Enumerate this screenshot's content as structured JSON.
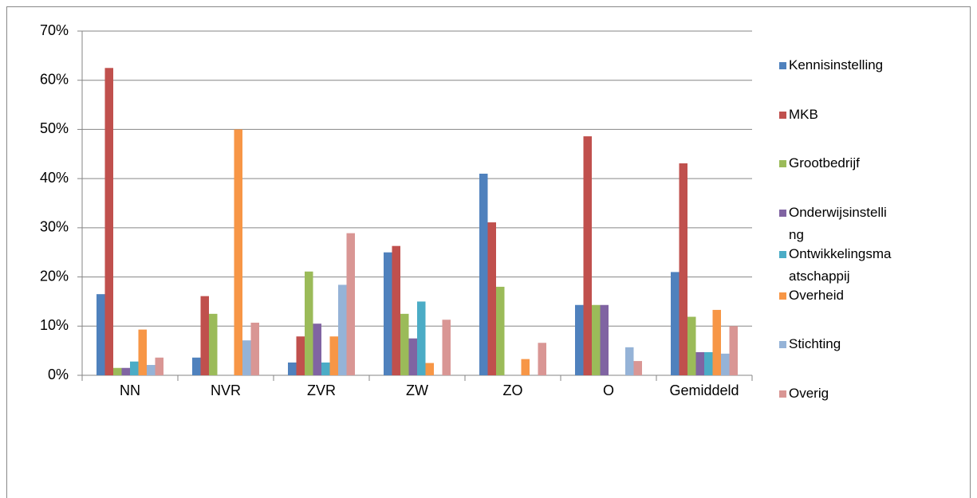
{
  "chart_data": {
    "type": "bar",
    "categories": [
      "NN",
      "NVR",
      "ZVR",
      "ZW",
      "ZO",
      "O",
      "Gemiddeld"
    ],
    "series": [
      {
        "name": "Kennisinstelling",
        "color": "#4f81bd",
        "values": [
          16.5,
          3.6,
          2.6,
          25,
          41,
          14.3,
          21
        ]
      },
      {
        "name": "MKB",
        "color": "#c0504d",
        "values": [
          62.5,
          16.1,
          7.9,
          26.3,
          31.1,
          48.6,
          43.1
        ]
      },
      {
        "name": "Grootbedrijf",
        "color": "#9bbb59",
        "values": [
          1.5,
          12.5,
          21.1,
          12.5,
          18,
          14.3,
          11.9
        ]
      },
      {
        "name": "Onderwijsinstelling",
        "color": "#8064a2",
        "values": [
          1.5,
          0,
          10.5,
          7.5,
          0,
          14.3,
          4.7
        ]
      },
      {
        "name": "Ontwikkelingsmaatschappij",
        "color": "#4bacc6",
        "values": [
          2.8,
          0,
          2.6,
          15,
          0,
          0,
          4.7
        ]
      },
      {
        "name": "Overheid",
        "color": "#f79646",
        "values": [
          9.3,
          50,
          7.9,
          2.5,
          3.3,
          0,
          13.3
        ]
      },
      {
        "name": "Stichting",
        "color": "#95b3d7",
        "values": [
          2.1,
          7.1,
          18.4,
          0,
          0,
          5.7,
          4.4
        ]
      },
      {
        "name": "Overig",
        "color": "#d99694",
        "values": [
          3.6,
          10.7,
          28.9,
          11.3,
          6.6,
          2.9,
          10
        ]
      }
    ],
    "ylim": [
      0,
      70
    ],
    "yticks": [
      {
        "value": 0,
        "label": "0%"
      },
      {
        "value": 10,
        "label": "10%"
      },
      {
        "value": 20,
        "label": "20%"
      },
      {
        "value": 30,
        "label": "30%"
      },
      {
        "value": 40,
        "label": "40%"
      },
      {
        "value": 50,
        "label": "50%"
      },
      {
        "value": 60,
        "label": "60%"
      },
      {
        "value": 70,
        "label": "70%"
      }
    ],
    "grid": true,
    "legend": "right"
  }
}
